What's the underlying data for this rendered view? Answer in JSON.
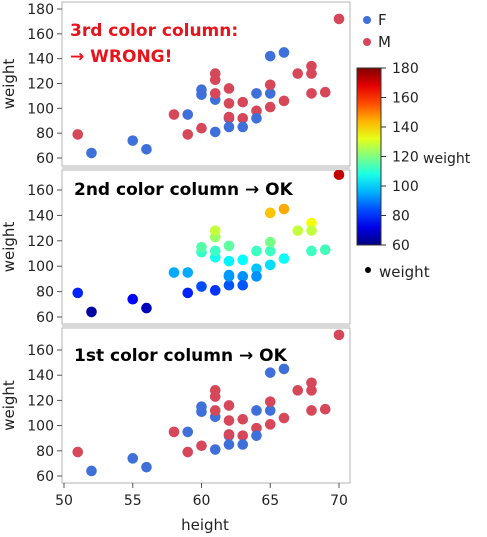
{
  "chart_data": {
    "type": "scatter",
    "xlabel": "height",
    "ylabel": "weight",
    "xlim": [
      50,
      70
    ],
    "x_ticks": [
      50,
      55,
      60,
      65,
      70
    ],
    "ylim": [
      60,
      180
    ],
    "y_ticks": [
      60,
      80,
      100,
      120,
      140,
      160,
      180
    ],
    "grid": false,
    "panels": [
      {
        "annotation_lines": [
          "3rd color column:",
          "→ WRONG!"
        ],
        "annotation_color": "#e8141c",
        "coloring": "sex"
      },
      {
        "annotation_lines": [
          "2nd color column → OK"
        ],
        "annotation_color": "#000000",
        "coloring": "weight"
      },
      {
        "annotation_lines": [
          "1st color column → OK"
        ],
        "annotation_color": "#000000",
        "coloring": "sex"
      }
    ],
    "points": [
      {
        "x": 51,
        "y": 79,
        "sex": "M"
      },
      {
        "x": 52,
        "y": 64,
        "sex": "F"
      },
      {
        "x": 55,
        "y": 74,
        "sex": "F"
      },
      {
        "x": 56,
        "y": 67,
        "sex": "F"
      },
      {
        "x": 58,
        "y": 95,
        "sex": "M"
      },
      {
        "x": 59,
        "y": 95,
        "sex": "F"
      },
      {
        "x": 59,
        "y": 79,
        "sex": "M"
      },
      {
        "x": 60,
        "y": 84,
        "sex": "M"
      },
      {
        "x": 60,
        "y": 111,
        "sex": "F"
      },
      {
        "x": 60,
        "y": 115,
        "sex": "F"
      },
      {
        "x": 61,
        "y": 81,
        "sex": "F"
      },
      {
        "x": 61,
        "y": 107,
        "sex": "F"
      },
      {
        "x": 61,
        "y": 123,
        "sex": "M"
      },
      {
        "x": 61,
        "y": 128,
        "sex": "M"
      },
      {
        "x": 61,
        "y": 112,
        "sex": "M"
      },
      {
        "x": 62,
        "y": 116,
        "sex": "M"
      },
      {
        "x": 62,
        "y": 104,
        "sex": "M"
      },
      {
        "x": 62,
        "y": 85,
        "sex": "F"
      },
      {
        "x": 62,
        "y": 92,
        "sex": "F"
      },
      {
        "x": 62,
        "y": 93,
        "sex": "M"
      },
      {
        "x": 63,
        "y": 105,
        "sex": "M"
      },
      {
        "x": 63,
        "y": 92,
        "sex": "M"
      },
      {
        "x": 63,
        "y": 85,
        "sex": "F"
      },
      {
        "x": 64,
        "y": 98,
        "sex": "M"
      },
      {
        "x": 64,
        "y": 112,
        "sex": "F"
      },
      {
        "x": 64,
        "y": 92,
        "sex": "F"
      },
      {
        "x": 65,
        "y": 112,
        "sex": "F"
      },
      {
        "x": 65,
        "y": 142,
        "sex": "F"
      },
      {
        "x": 65,
        "y": 119,
        "sex": "M"
      },
      {
        "x": 65,
        "y": 101,
        "sex": "M"
      },
      {
        "x": 66,
        "y": 145,
        "sex": "F"
      },
      {
        "x": 66,
        "y": 106,
        "sex": "M"
      },
      {
        "x": 67,
        "y": 128,
        "sex": "M"
      },
      {
        "x": 68,
        "y": 134,
        "sex": "M"
      },
      {
        "x": 68,
        "y": 128,
        "sex": "M"
      },
      {
        "x": 68,
        "y": 112,
        "sex": "M"
      },
      {
        "x": 69,
        "y": 113,
        "sex": "M"
      },
      {
        "x": 70,
        "y": 172,
        "sex": "M"
      }
    ],
    "legend": {
      "position": "right",
      "sex_items": [
        {
          "label": "F",
          "color": "#3f6fd9"
        },
        {
          "label": "M",
          "color": "#d6475a"
        }
      ],
      "colorbar": {
        "title": "weight",
        "min": 60,
        "max": 180,
        "ticks": [
          60,
          80,
          100,
          120,
          140,
          160,
          180
        ]
      },
      "size_item": {
        "label": "weight"
      }
    },
    "colors": {
      "F": "#3f6fd9",
      "M": "#d6475a",
      "panel_border": "#b4b4b4",
      "panel_gap": "#d9d9d9"
    }
  }
}
